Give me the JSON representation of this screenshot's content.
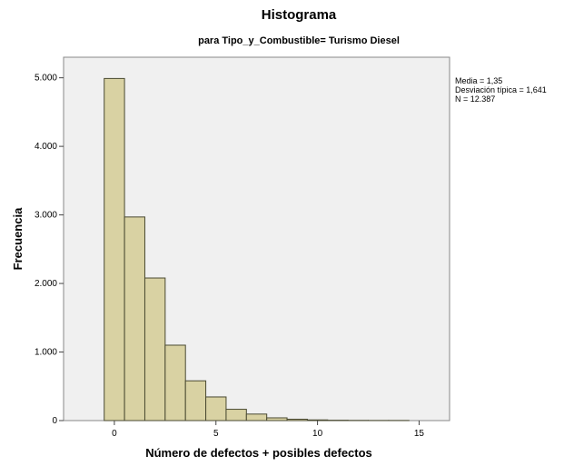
{
  "chart_data": {
    "type": "bar",
    "title": "Histograma",
    "subtitle": "para Tipo_y_Combustible= Turismo Diesel",
    "xlabel": "Número de defectos + posibles defectos",
    "ylabel": "Frecuencia",
    "bin_width": 1,
    "bins_start": [
      0,
      1,
      2,
      3,
      4,
      5,
      6,
      7,
      8,
      9,
      10,
      11,
      12,
      13,
      14
    ],
    "values": [
      4990,
      2970,
      2080,
      1100,
      580,
      345,
      165,
      95,
      40,
      20,
      10,
      5,
      3,
      2,
      2
    ],
    "xlim": [
      -2.5,
      16.5
    ],
    "ylim": [
      0,
      5300
    ],
    "x_ticks": [
      0,
      5,
      10,
      15
    ],
    "x_tick_labels": [
      "0",
      "5",
      "10",
      "15"
    ],
    "y_ticks": [
      0,
      1000,
      2000,
      3000,
      4000,
      5000
    ],
    "y_tick_labels": [
      "0",
      "1.000",
      "2.000",
      "3.000",
      "4.000",
      "5.000"
    ],
    "stats": [
      {
        "label": "Media = 1,35"
      },
      {
        "label": "Desviación típica = 1,641"
      },
      {
        "label": "N = 12.387"
      }
    ],
    "colors": {
      "bar_fill": "#d9d2a3",
      "bar_stroke": "#4a4a32",
      "plot_background": "#f0f0f0"
    }
  }
}
